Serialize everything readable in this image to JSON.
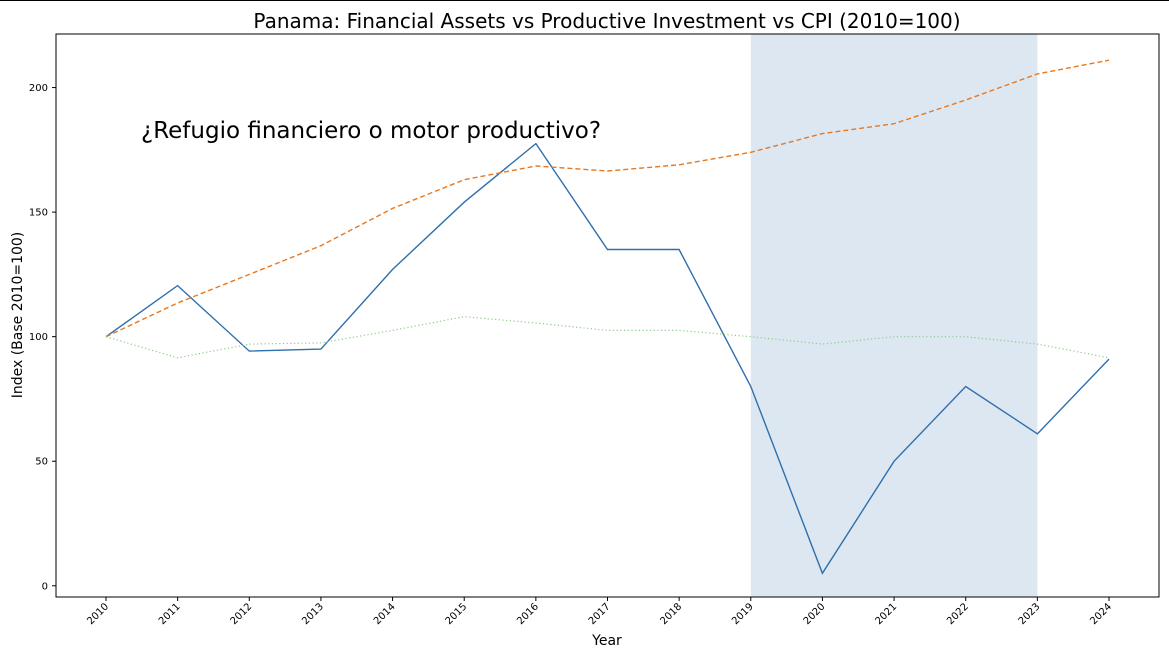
{
  "chart_data": {
    "type": "line",
    "title": "Panama: Financial Assets vs Productive Investment vs CPI (2010=100)",
    "xlabel": "Year",
    "ylabel": "Index (Base 2010=100)",
    "annotation": "¿Refugio financiero o motor productivo?",
    "x": [
      "2010",
      "2011",
      "2012",
      "2013",
      "2014",
      "2015",
      "2016",
      "2017",
      "2018",
      "2019",
      "2020",
      "2021",
      "2022",
      "2023",
      "2024"
    ],
    "yticks": [
      0,
      50,
      100,
      150,
      200
    ],
    "ylim": [
      -4.5,
      221.5
    ],
    "grid": false,
    "shaded_region": {
      "from": "2019",
      "to": "2023",
      "color": "#dde7f1"
    },
    "series": [
      {
        "color": "#2f6fac",
        "style": "solid",
        "values": [
          100,
          120.5,
          94.2,
          95.0,
          127.0,
          154.0,
          177.5,
          135.0,
          135.0,
          80.0,
          5.0,
          50.0,
          80.0,
          61.0,
          91.0
        ]
      },
      {
        "color": "#e8781f",
        "style": "dashed",
        "values": [
          100,
          113.5,
          125.0,
          136.5,
          151.5,
          163.0,
          168.5,
          166.5,
          169.0,
          174.0,
          181.5,
          185.5,
          195.0,
          205.5,
          211.0
        ]
      },
      {
        "color": "#8fc98a",
        "style": "dotted",
        "values": [
          100,
          91.5,
          97.0,
          97.5,
          102.5,
          108.0,
          105.5,
          102.5,
          102.5,
          100.0,
          97.0,
          100.0,
          100.0,
          97.0,
          91.5
        ]
      }
    ]
  }
}
